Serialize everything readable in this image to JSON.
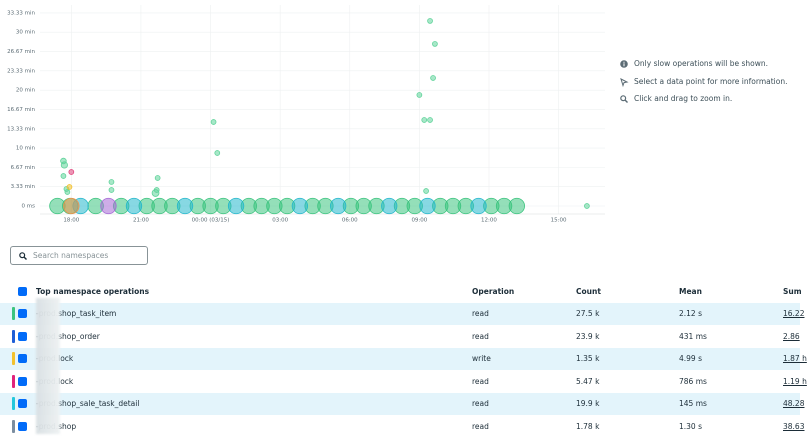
{
  "chart_data": {
    "type": "scatter",
    "xlim": [
      16.65,
      41.0
    ],
    "ylim": [
      0,
      34.7
    ],
    "grid": true,
    "xticks": [
      {
        "value": 18,
        "label": "18:00"
      },
      {
        "value": 21,
        "label": "21:00"
      },
      {
        "value": 24,
        "label": "00:00 (03/15)"
      },
      {
        "value": 27,
        "label": "03:00"
      },
      {
        "value": 30,
        "label": "06:00"
      },
      {
        "value": 33,
        "label": "09:00"
      },
      {
        "value": 36,
        "label": "12:00"
      },
      {
        "value": 39,
        "label": "15:00"
      }
    ],
    "yticks": [
      {
        "value": 0,
        "label": "0 ms"
      },
      {
        "value": 3.33,
        "label": "3.33 min"
      },
      {
        "value": 6.67,
        "label": "6.67 min"
      },
      {
        "value": 10,
        "label": "10 min"
      },
      {
        "value": 13.33,
        "label": "13.33 min"
      },
      {
        "value": 16.67,
        "label": "16.67 min"
      },
      {
        "value": 20,
        "label": "20 min"
      },
      {
        "value": 23.33,
        "label": "23.33 min"
      },
      {
        "value": 26.67,
        "label": "26.67 min"
      },
      {
        "value": 30,
        "label": "30 min"
      },
      {
        "value": 33.33,
        "label": "33.33 min"
      }
    ],
    "series": [
      {
        "color": "#3cc47f",
        "x": [
          17.4,
          17.95,
          19.05,
          20.15,
          21.25,
          21.8,
          22.35,
          23.45,
          24.0,
          24.55,
          25.65,
          26.2,
          26.75,
          27.3,
          28.4,
          28.95,
          30.05,
          30.6,
          31.15,
          32.25,
          32.8,
          33.9,
          34.45,
          35.0,
          36.1,
          36.65,
          37.2
        ],
        "values": [
          0,
          0,
          0,
          0,
          0,
          0,
          0,
          0,
          0,
          0,
          0,
          0,
          0,
          0,
          0,
          0,
          0,
          0,
          0,
          0,
          0,
          0,
          0,
          0,
          0,
          0,
          0
        ],
        "sizes": [
          60,
          60,
          60,
          60,
          60,
          60,
          60,
          60,
          60,
          60,
          60,
          60,
          60,
          60,
          60,
          60,
          60,
          60,
          60,
          60,
          60,
          60,
          60,
          60,
          60,
          60,
          60
        ]
      },
      {
        "color": "#24b8cc",
        "x": [
          18.4,
          20.7,
          22.9,
          25.1,
          27.85,
          29.5,
          31.7,
          33.35,
          35.55
        ],
        "values": [
          0,
          0,
          0,
          0,
          0,
          0,
          0,
          0,
          0
        ],
        "sizes": [
          60,
          60,
          60,
          60,
          60,
          60,
          60,
          60,
          60
        ]
      },
      {
        "color": "#f0924a",
        "x": [
          18.0
        ],
        "values": [
          0
        ],
        "sizes": [
          60
        ]
      },
      {
        "color": "#a56ad6",
        "x": [
          19.6
        ],
        "values": [
          0
        ],
        "sizes": [
          60
        ]
      },
      {
        "color": "#5fd39a",
        "x": [
          33.46,
          33.67,
          33.59,
          33.0,
          33.21,
          33.46,
          24.13,
          24.29,
          17.66,
          17.7,
          17.66,
          19.73,
          19.73,
          21.72,
          21.68,
          21.63,
          17.79,
          17.83,
          33.29,
          40.22
        ],
        "values": [
          31.95,
          27.98,
          22.1,
          19.17,
          14.85,
          14.85,
          14.5,
          9.15,
          7.77,
          7.08,
          5.18,
          4.15,
          2.76,
          4.84,
          2.76,
          2.25,
          2.94,
          2.42,
          2.59,
          0
        ],
        "sizes": [
          6,
          6,
          6,
          6,
          6,
          6,
          6,
          6,
          8,
          10,
          6,
          6,
          6,
          6,
          6,
          12,
          6,
          6,
          6,
          6
        ]
      },
      {
        "color": "#e0447c",
        "x": [
          18.0
        ],
        "values": [
          5.87
        ],
        "sizes": [
          6
        ]
      },
      {
        "color": "#f2c12e",
        "x": [
          17.92
        ],
        "values": [
          3.28
        ],
        "sizes": [
          6
        ]
      }
    ]
  },
  "sidebar": [
    "Only slow operations will be shown.",
    "Select a data point for more information.",
    "Click and drag to zoom in."
  ],
  "search": {
    "placeholder": "Search namespaces"
  },
  "table": {
    "headers": [
      "Top namespace operations",
      "Operation",
      "Count",
      "Mean",
      "Sum"
    ],
    "rows": [
      {
        "color": "#3cc47f",
        "cells": [
          "-prod.shop_task_item",
          "read",
          "27.5 k",
          "2.12 s",
          "16.22"
        ]
      },
      {
        "color": "#1f5fd6",
        "cells": [
          "-prod.shop_order",
          "read",
          "23.9 k",
          "431 ms",
          "2.86"
        ]
      },
      {
        "color": "#f2c12e",
        "cells": [
          "-prod.lock",
          "write",
          "1.35 k",
          "4.99 s",
          "1.87 h"
        ]
      },
      {
        "color": "#e0247c",
        "cells": [
          "-prod.lock",
          "read",
          "5.47 k",
          "786 ms",
          "1.19 h"
        ]
      },
      {
        "color": "#24c8dc",
        "cells": [
          "-prod.shop_sale_task_detail",
          "read",
          "19.9 k",
          "145 ms",
          "48.28"
        ]
      },
      {
        "color": "#7c8ea0",
        "cells": [
          "-prod.shop",
          "read",
          "1.78 k",
          "1.30 s",
          "38.63"
        ]
      }
    ]
  }
}
